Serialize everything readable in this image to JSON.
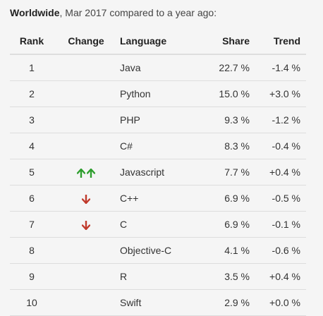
{
  "caption": {
    "scope": "Worldwide",
    "period": ", Mar 2017 compared to a year ago:"
  },
  "columns": {
    "rank": "Rank",
    "change": "Change",
    "language": "Language",
    "share": "Share",
    "trend": "Trend"
  },
  "colors": {
    "up": "#2e9e2e",
    "down": "#c0392b"
  },
  "rows": [
    {
      "rank": "1",
      "change": "",
      "language": "Java",
      "share": "22.7 %",
      "trend": "-1.4 %"
    },
    {
      "rank": "2",
      "change": "",
      "language": "Python",
      "share": "15.0 %",
      "trend": "+3.0 %"
    },
    {
      "rank": "3",
      "change": "",
      "language": "PHP",
      "share": "9.3 %",
      "trend": "-1.2 %"
    },
    {
      "rank": "4",
      "change": "",
      "language": "C#",
      "share": "8.3 %",
      "trend": "-0.4 %"
    },
    {
      "rank": "5",
      "change": "up-up",
      "language": "Javascript",
      "share": "7.7 %",
      "trend": "+0.4 %"
    },
    {
      "rank": "6",
      "change": "down",
      "language": "C++",
      "share": "6.9 %",
      "trend": "-0.5 %"
    },
    {
      "rank": "7",
      "change": "down",
      "language": "C",
      "share": "6.9 %",
      "trend": "-0.1 %"
    },
    {
      "rank": "8",
      "change": "",
      "language": "Objective-C",
      "share": "4.1 %",
      "trend": "-0.6 %"
    },
    {
      "rank": "9",
      "change": "",
      "language": "R",
      "share": "3.5 %",
      "trend": "+0.4 %"
    },
    {
      "rank": "10",
      "change": "",
      "language": "Swift",
      "share": "2.9 %",
      "trend": "+0.0 %"
    }
  ]
}
